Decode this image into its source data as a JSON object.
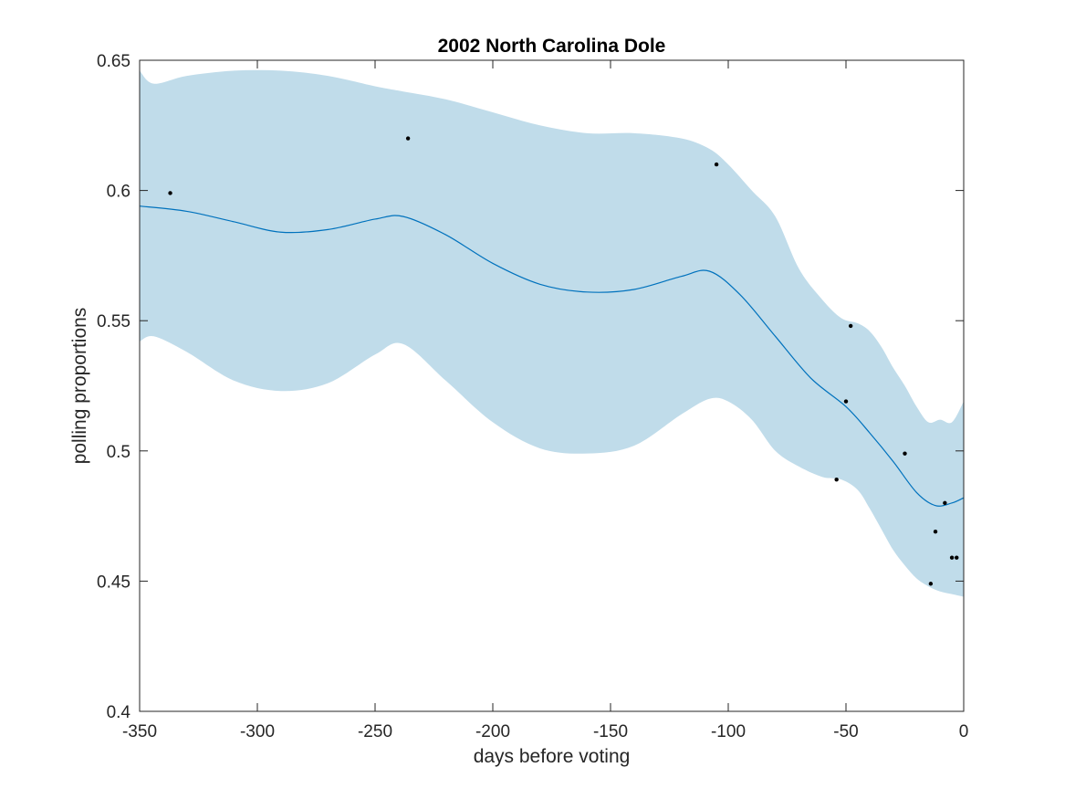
{
  "chart_data": {
    "type": "line",
    "title": "2002 North Carolina Dole",
    "xlabel": "days before voting",
    "ylabel": "polling proportions",
    "xlim": [
      -350,
      0
    ],
    "ylim": [
      0.4,
      0.65
    ],
    "xticks": [
      -350,
      -300,
      -250,
      -200,
      -150,
      -100,
      -50,
      0
    ],
    "xtick_labels": [
      "-350",
      "-300",
      "-250",
      "-200",
      "-150",
      "-100",
      "-50",
      "0"
    ],
    "yticks": [
      0.4,
      0.45,
      0.5,
      0.55,
      0.6,
      0.65
    ],
    "ytick_labels": [
      "0.4",
      "0.45",
      "0.5",
      "0.55",
      "0.6",
      "0.65"
    ],
    "grid": false,
    "legend": "none",
    "colors": {
      "band": "#c0dcea",
      "line": "#0072bd",
      "points": "#000000",
      "axes": "#262626"
    },
    "series": [
      {
        "type": "band",
        "x": [
          -350,
          -344,
          -330,
          -310,
          -290,
          -270,
          -250,
          -238,
          -220,
          -200,
          -180,
          -160,
          -140,
          -120,
          -108,
          -100,
          -90,
          -80,
          -70,
          -60,
          -52,
          -45,
          -40,
          -35,
          -30,
          -25,
          -20,
          -15,
          -10,
          -5,
          0
        ],
        "upper": [
          0.646,
          0.641,
          0.644,
          0.646,
          0.646,
          0.644,
          0.64,
          0.638,
          0.635,
          0.63,
          0.625,
          0.622,
          0.622,
          0.62,
          0.616,
          0.61,
          0.6,
          0.59,
          0.57,
          0.558,
          0.551,
          0.549,
          0.546,
          0.54,
          0.532,
          0.525,
          0.517,
          0.511,
          0.512,
          0.511,
          0.519
        ],
        "lower": [
          0.542,
          0.544,
          0.538,
          0.527,
          0.523,
          0.526,
          0.537,
          0.541,
          0.527,
          0.511,
          0.501,
          0.499,
          0.502,
          0.514,
          0.52,
          0.519,
          0.512,
          0.5,
          0.494,
          0.49,
          0.489,
          0.485,
          0.478,
          0.47,
          0.462,
          0.456,
          0.451,
          0.448,
          0.446,
          0.445,
          0.444
        ]
      },
      {
        "type": "line",
        "x": [
          -350,
          -330,
          -310,
          -290,
          -270,
          -250,
          -238,
          -220,
          -200,
          -180,
          -160,
          -140,
          -120,
          -108,
          -95,
          -80,
          -65,
          -50,
          -40,
          -30,
          -20,
          -12,
          -5,
          0
        ],
        "y": [
          0.594,
          0.592,
          0.588,
          0.584,
          0.585,
          0.589,
          0.59,
          0.583,
          0.572,
          0.564,
          0.561,
          0.562,
          0.567,
          0.569,
          0.56,
          0.544,
          0.528,
          0.517,
          0.507,
          0.496,
          0.484,
          0.479,
          0.48,
          0.482
        ]
      },
      {
        "type": "scatter",
        "x": [
          -337,
          -236,
          -105,
          -48,
          -50,
          -54,
          -25,
          -8,
          -12,
          -5,
          -3,
          -14
        ],
        "y": [
          0.599,
          0.62,
          0.61,
          0.548,
          0.519,
          0.489,
          0.499,
          0.48,
          0.469,
          0.459,
          0.459,
          0.449
        ]
      }
    ]
  }
}
